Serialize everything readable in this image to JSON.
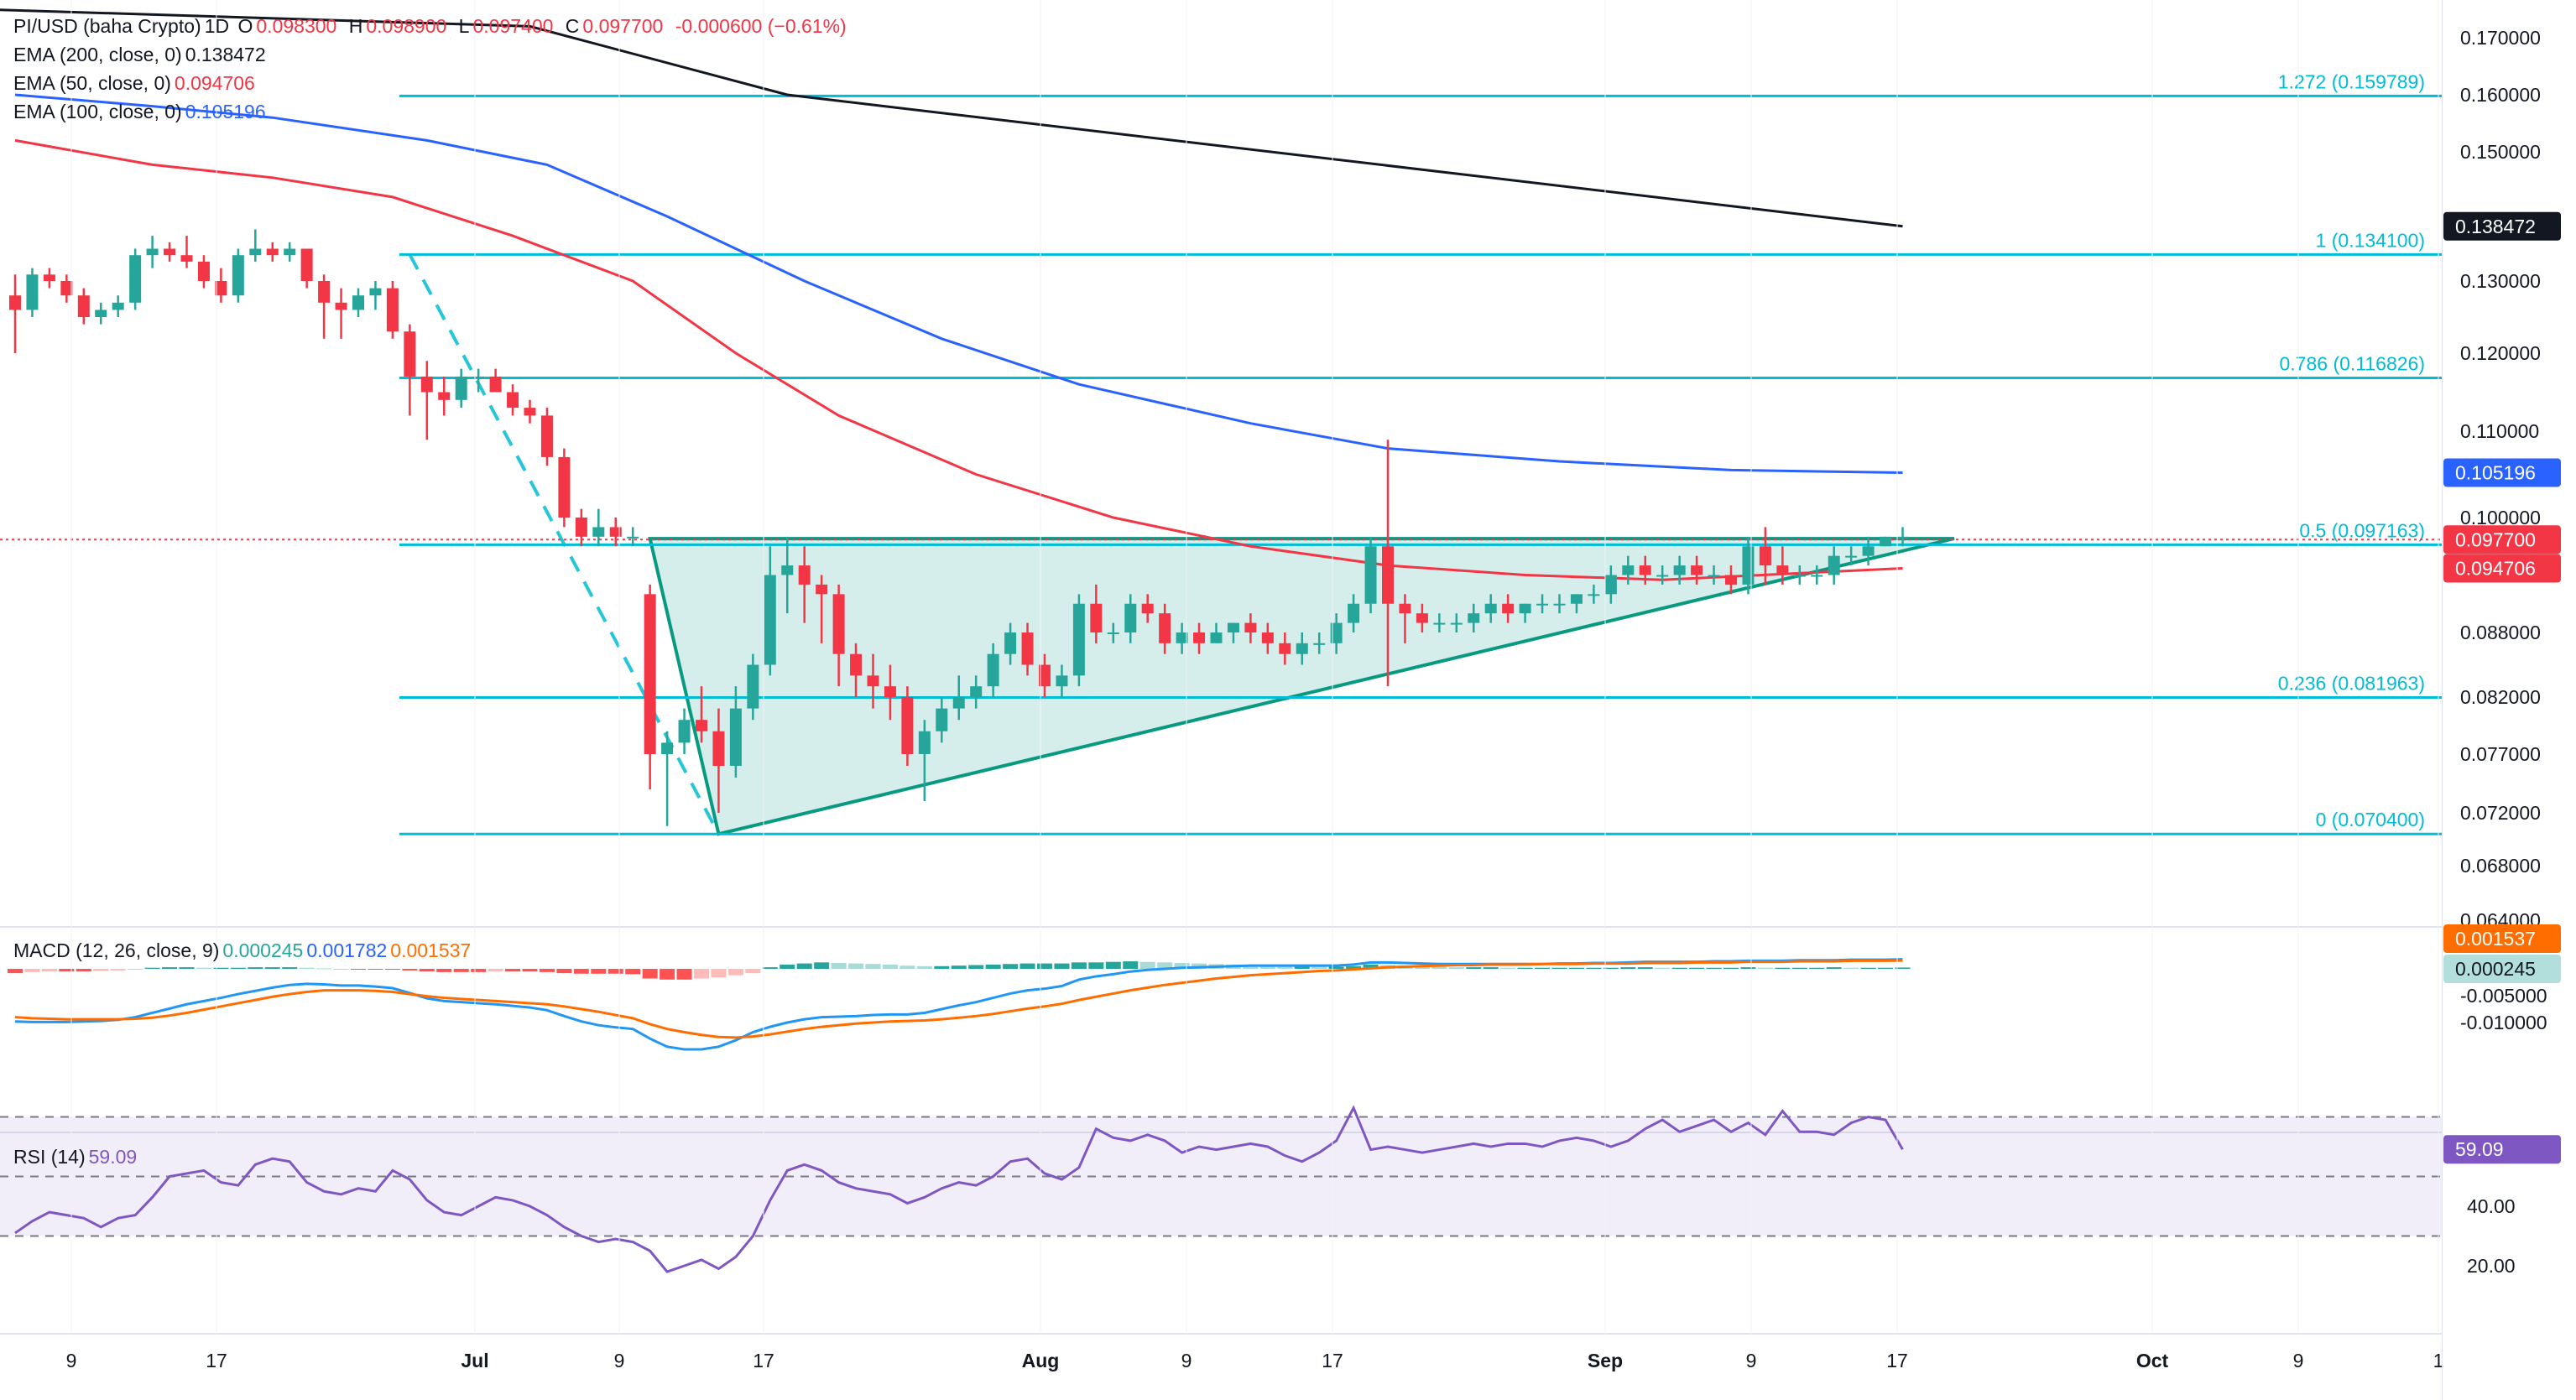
{
  "header": {
    "symbol": "PI/USD (baha Crypto)",
    "interval": "1D",
    "open_label": "O",
    "open": "0.098300",
    "high_label": "H",
    "high": "0.098900",
    "low_label": "L",
    "low": "0.097400",
    "close_label": "C",
    "close": "0.097700",
    "change": "-0.000600 (−0.61%)"
  },
  "indicators": {
    "ema200": {
      "label": "EMA (200, close, 0)",
      "value": "0.138472",
      "color": "#131722"
    },
    "ema50": {
      "label": "EMA (50, close, 0)",
      "value": "0.094706",
      "color": "#f23645"
    },
    "ema100": {
      "label": "EMA (100, close, 0)",
      "value": "0.105196",
      "color": "#2962ff"
    },
    "macd": {
      "label": "MACD (12, 26, close, 9)",
      "hist": "0.000245",
      "macd": "0.001782",
      "signal": "0.001537"
    },
    "rsi": {
      "label": "RSI (14)",
      "value": "59.09"
    }
  },
  "colors": {
    "up": "#26a69a",
    "down": "#f23645",
    "fib": "#00bcd4",
    "ema200": "#131722",
    "ema50": "#f23645",
    "ema100": "#2962ff",
    "macd_line": "#2196f3",
    "signal_line": "#ff6d00",
    "rsi_line": "#7e57c2",
    "triangle_fill": "#b2dfdb",
    "triangle_stroke": "#089981"
  },
  "chart_data": {
    "type": "candlestick",
    "x_labels": [
      "9",
      "17",
      "Jul",
      "9",
      "17",
      "Aug",
      "9",
      "17",
      "Sep",
      "9",
      "17",
      "Oct",
      "9",
      "1"
    ],
    "price_ticks": [
      "0.170000",
      "0.160000",
      "0.150000",
      "0.130000",
      "0.120000",
      "0.110000",
      "0.100000",
      "0.088000",
      "0.082000",
      "0.077000",
      "0.072000",
      "0.068000",
      "0.064000"
    ],
    "price_tags": [
      {
        "value": "0.138472",
        "kind": "ema200"
      },
      {
        "value": "0.105196",
        "kind": "ema100"
      },
      {
        "value": "0.097700",
        "kind": "last"
      },
      {
        "value": "0.094706",
        "kind": "ema50"
      }
    ],
    "fib_levels": [
      {
        "label": "1.272 (0.159789)",
        "price": 0.159789
      },
      {
        "label": "1 (0.134100)",
        "price": 0.1341
      },
      {
        "label": "0.786 (0.116826)",
        "price": 0.116826
      },
      {
        "label": "0.5 (0.097163)",
        "price": 0.097163
      },
      {
        "label": "0.236 (0.081963)",
        "price": 0.081963
      },
      {
        "label": "0 (0.070400)",
        "price": 0.0704
      }
    ],
    "ohlc": [
      [
        0.128,
        0.131,
        0.12,
        0.126
      ],
      [
        0.126,
        0.132,
        0.125,
        0.131
      ],
      [
        0.131,
        0.132,
        0.129,
        0.13
      ],
      [
        0.13,
        0.131,
        0.127,
        0.128
      ],
      [
        0.128,
        0.129,
        0.124,
        0.125
      ],
      [
        0.125,
        0.127,
        0.124,
        0.126
      ],
      [
        0.126,
        0.128,
        0.125,
        0.127
      ],
      [
        0.127,
        0.135,
        0.126,
        0.134
      ],
      [
        0.134,
        0.137,
        0.132,
        0.135
      ],
      [
        0.135,
        0.136,
        0.133,
        0.134
      ],
      [
        0.134,
        0.137,
        0.132,
        0.133
      ],
      [
        0.133,
        0.134,
        0.129,
        0.13
      ],
      [
        0.13,
        0.132,
        0.127,
        0.128
      ],
      [
        0.128,
        0.135,
        0.127,
        0.134
      ],
      [
        0.134,
        0.138,
        0.133,
        0.135
      ],
      [
        0.135,
        0.136,
        0.133,
        0.134
      ],
      [
        0.134,
        0.136,
        0.133,
        0.135
      ],
      [
        0.135,
        0.135,
        0.129,
        0.13
      ],
      [
        0.13,
        0.131,
        0.122,
        0.127
      ],
      [
        0.127,
        0.129,
        0.122,
        0.126
      ],
      [
        0.126,
        0.129,
        0.125,
        0.128
      ],
      [
        0.128,
        0.13,
        0.126,
        0.129
      ],
      [
        0.129,
        0.13,
        0.122,
        0.123
      ],
      [
        0.123,
        0.124,
        0.112,
        0.117
      ],
      [
        0.117,
        0.119,
        0.109,
        0.115
      ],
      [
        0.115,
        0.117,
        0.112,
        0.114
      ],
      [
        0.114,
        0.118,
        0.113,
        0.117
      ],
      [
        0.117,
        0.118,
        0.115,
        0.117
      ],
      [
        0.117,
        0.118,
        0.115,
        0.115
      ],
      [
        0.115,
        0.116,
        0.112,
        0.113
      ],
      [
        0.113,
        0.114,
        0.111,
        0.112
      ],
      [
        0.112,
        0.113,
        0.106,
        0.107
      ],
      [
        0.107,
        0.108,
        0.099,
        0.1
      ],
      [
        0.1,
        0.101,
        0.097,
        0.098
      ],
      [
        0.098,
        0.101,
        0.097,
        0.099
      ],
      [
        0.099,
        0.1,
        0.097,
        0.098
      ],
      [
        0.098,
        0.099,
        0.097,
        0.098
      ],
      [
        0.092,
        0.093,
        0.074,
        0.077
      ],
      [
        0.077,
        0.079,
        0.071,
        0.078
      ],
      [
        0.078,
        0.081,
        0.077,
        0.08
      ],
      [
        0.08,
        0.083,
        0.078,
        0.079
      ],
      [
        0.079,
        0.081,
        0.072,
        0.076
      ],
      [
        0.076,
        0.083,
        0.075,
        0.081
      ],
      [
        0.081,
        0.086,
        0.08,
        0.085
      ],
      [
        0.085,
        0.097,
        0.084,
        0.094
      ],
      [
        0.094,
        0.098,
        0.09,
        0.095
      ],
      [
        0.095,
        0.097,
        0.089,
        0.093
      ],
      [
        0.093,
        0.094,
        0.087,
        0.092
      ],
      [
        0.092,
        0.093,
        0.083,
        0.086
      ],
      [
        0.086,
        0.087,
        0.082,
        0.084
      ],
      [
        0.084,
        0.086,
        0.081,
        0.083
      ],
      [
        0.083,
        0.085,
        0.08,
        0.082
      ],
      [
        0.082,
        0.083,
        0.076,
        0.077
      ],
      [
        0.077,
        0.08,
        0.073,
        0.079
      ],
      [
        0.079,
        0.082,
        0.078,
        0.081
      ],
      [
        0.081,
        0.084,
        0.08,
        0.082
      ],
      [
        0.082,
        0.084,
        0.081,
        0.083
      ],
      [
        0.083,
        0.087,
        0.082,
        0.086
      ],
      [
        0.086,
        0.089,
        0.085,
        0.088
      ],
      [
        0.088,
        0.089,
        0.084,
        0.085
      ],
      [
        0.085,
        0.086,
        0.082,
        0.083
      ],
      [
        0.083,
        0.085,
        0.082,
        0.084
      ],
      [
        0.084,
        0.092,
        0.083,
        0.091
      ],
      [
        0.091,
        0.093,
        0.087,
        0.088
      ],
      [
        0.088,
        0.089,
        0.087,
        0.088
      ],
      [
        0.088,
        0.092,
        0.087,
        0.091
      ],
      [
        0.091,
        0.092,
        0.089,
        0.09
      ],
      [
        0.09,
        0.091,
        0.086,
        0.087
      ],
      [
        0.087,
        0.089,
        0.086,
        0.088
      ],
      [
        0.088,
        0.089,
        0.086,
        0.087
      ],
      [
        0.087,
        0.089,
        0.087,
        0.088
      ],
      [
        0.088,
        0.089,
        0.087,
        0.089
      ],
      [
        0.089,
        0.09,
        0.087,
        0.088
      ],
      [
        0.088,
        0.089,
        0.086,
        0.087
      ],
      [
        0.087,
        0.088,
        0.085,
        0.086
      ],
      [
        0.086,
        0.088,
        0.085,
        0.087
      ],
      [
        0.087,
        0.088,
        0.086,
        0.087
      ],
      [
        0.087,
        0.09,
        0.086,
        0.089
      ],
      [
        0.089,
        0.092,
        0.088,
        0.091
      ],
      [
        0.091,
        0.098,
        0.09,
        0.097
      ],
      [
        0.097,
        0.109,
        0.083,
        0.091
      ],
      [
        0.091,
        0.092,
        0.087,
        0.09
      ],
      [
        0.09,
        0.091,
        0.088,
        0.089
      ],
      [
        0.089,
        0.09,
        0.088,
        0.089
      ],
      [
        0.089,
        0.09,
        0.088,
        0.089
      ],
      [
        0.089,
        0.091,
        0.088,
        0.09
      ],
      [
        0.09,
        0.092,
        0.089,
        0.091
      ],
      [
        0.091,
        0.092,
        0.089,
        0.09
      ],
      [
        0.09,
        0.091,
        0.089,
        0.091
      ],
      [
        0.091,
        0.092,
        0.09,
        0.091
      ],
      [
        0.091,
        0.092,
        0.09,
        0.091
      ],
      [
        0.091,
        0.092,
        0.09,
        0.092
      ],
      [
        0.092,
        0.093,
        0.091,
        0.092
      ],
      [
        0.092,
        0.095,
        0.091,
        0.094
      ],
      [
        0.094,
        0.096,
        0.093,
        0.095
      ],
      [
        0.095,
        0.096,
        0.093,
        0.094
      ],
      [
        0.094,
        0.095,
        0.093,
        0.094
      ],
      [
        0.094,
        0.096,
        0.093,
        0.095
      ],
      [
        0.095,
        0.096,
        0.093,
        0.094
      ],
      [
        0.094,
        0.095,
        0.093,
        0.094
      ],
      [
        0.094,
        0.095,
        0.092,
        0.093
      ],
      [
        0.093,
        0.098,
        0.092,
        0.097
      ],
      [
        0.097,
        0.099,
        0.093,
        0.095
      ],
      [
        0.095,
        0.097,
        0.093,
        0.094
      ],
      [
        0.094,
        0.095,
        0.093,
        0.094
      ],
      [
        0.094,
        0.095,
        0.093,
        0.094
      ],
      [
        0.094,
        0.097,
        0.093,
        0.096
      ],
      [
        0.096,
        0.097,
        0.095,
        0.096
      ],
      [
        0.096,
        0.098,
        0.095,
        0.097
      ],
      [
        0.097,
        0.098,
        0.097,
        0.098
      ],
      [
        0.098,
        0.099,
        0.097,
        0.098
      ]
    ],
    "ema200_line": [
      [
        0.175,
        -2
      ],
      [
        0.172,
        30
      ],
      [
        0.16,
        45
      ],
      [
        0.138472,
        110
      ]
    ],
    "ema100_line": [
      [
        0.16,
        0
      ],
      [
        0.158,
        8
      ],
      [
        0.156,
        15
      ],
      [
        0.152,
        24
      ],
      [
        0.148,
        31
      ],
      [
        0.14,
        38
      ],
      [
        0.13,
        46
      ],
      [
        0.122,
        54
      ],
      [
        0.116,
        62
      ],
      [
        0.111,
        72
      ],
      [
        0.108,
        80
      ],
      [
        0.1065,
        90
      ],
      [
        0.1055,
        100
      ],
      [
        0.105196,
        110
      ]
    ],
    "ema50_line": [
      [
        0.152,
        0
      ],
      [
        0.148,
        8
      ],
      [
        0.146,
        15
      ],
      [
        0.143,
        22
      ],
      [
        0.137,
        29
      ],
      [
        0.13,
        36
      ],
      [
        0.12,
        42
      ],
      [
        0.112,
        48
      ],
      [
        0.105,
        56
      ],
      [
        0.1,
        64
      ],
      [
        0.097,
        72
      ],
      [
        0.095,
        80
      ],
      [
        0.094,
        88
      ],
      [
        0.0935,
        96
      ],
      [
        0.094706,
        110
      ]
    ],
    "triangle": [
      [
        0.0978,
        37
      ],
      [
        0.0704,
        41
      ],
      [
        0.0978,
        113
      ]
    ],
    "dashed_leg": [
      [
        0.1341,
        23
      ],
      [
        0.0704,
        41
      ]
    ],
    "macd_hist": [
      -0.0008,
      -0.0006,
      -0.0005,
      -0.0005,
      -0.0005,
      -0.0004,
      -0.0003,
      -0.0001,
      0.0002,
      0.0003,
      0.0003,
      0.0002,
      0.0002,
      0.0002,
      0.0003,
      0.0003,
      0.0003,
      0.0002,
      0.0001,
      0.0,
      -0.0001,
      -0.0001,
      -0.0001,
      -0.0003,
      -0.0005,
      -0.0006,
      -0.0006,
      -0.0006,
      -0.0005,
      -0.0005,
      -0.0005,
      -0.0006,
      -0.0008,
      -0.0009,
      -0.0009,
      -0.0009,
      -0.001,
      -0.0018,
      -0.002,
      -0.002,
      -0.0018,
      -0.0016,
      -0.0012,
      -0.0008,
      0.0003,
      0.0008,
      0.001,
      0.0012,
      0.0011,
      0.001,
      0.0009,
      0.0008,
      0.0006,
      0.0005,
      0.0005,
      0.0006,
      0.0007,
      0.0008,
      0.0009,
      0.001,
      0.001,
      0.001,
      0.0012,
      0.0012,
      0.0013,
      0.0014,
      0.0013,
      0.0012,
      0.0011,
      0.001,
      0.0009,
      0.0008,
      0.0007,
      0.0006,
      0.0005,
      0.0005,
      0.0004,
      0.0004,
      0.0005,
      0.0008,
      0.0007,
      0.0006,
      0.0005,
      0.0004,
      0.0003,
      0.0003,
      0.0003,
      0.0002,
      0.0002,
      0.0002,
      0.0002,
      0.0002,
      0.0002,
      0.0002,
      0.0003,
      0.0003,
      0.0002,
      0.0002,
      0.0002,
      0.0002,
      0.0002,
      0.0003,
      0.0002,
      0.0002,
      0.0002,
      0.0002,
      0.0003,
      0.0002,
      0.0002,
      0.0002,
      0.000245
    ],
    "macd_line": [
      -0.0098,
      -0.0099,
      -0.0099,
      -0.0099,
      -0.0098,
      -0.0097,
      -0.0095,
      -0.009,
      -0.0082,
      -0.0074,
      -0.0066,
      -0.006,
      -0.0054,
      -0.0047,
      -0.0041,
      -0.0035,
      -0.003,
      -0.0028,
      -0.0029,
      -0.0031,
      -0.0031,
      -0.0033,
      -0.0036,
      -0.0045,
      -0.0055,
      -0.006,
      -0.0062,
      -0.0064,
      -0.0066,
      -0.0069,
      -0.0072,
      -0.0077,
      -0.0088,
      -0.0098,
      -0.0105,
      -0.0109,
      -0.0112,
      -0.013,
      -0.0145,
      -0.015,
      -0.015,
      -0.0145,
      -0.0133,
      -0.0118,
      -0.0108,
      -0.01,
      -0.0094,
      -0.009,
      -0.0089,
      -0.0088,
      -0.0086,
      -0.0085,
      -0.0085,
      -0.0082,
      -0.0075,
      -0.0068,
      -0.0062,
      -0.0054,
      -0.0046,
      -0.004,
      -0.0037,
      -0.0032,
      -0.002,
      -0.0014,
      -0.001,
      -0.0005,
      -0.0002,
      0.0,
      0.0002,
      0.0003,
      0.0004,
      0.0005,
      0.0006,
      0.0006,
      0.0006,
      0.0006,
      0.0006,
      0.0006,
      0.0008,
      0.0012,
      0.0012,
      0.0011,
      0.001,
      0.0009,
      0.0009,
      0.0009,
      0.0009,
      0.0009,
      0.0009,
      0.0009,
      0.001,
      0.001,
      0.0011,
      0.0011,
      0.0012,
      0.0013,
      0.0013,
      0.0013,
      0.0013,
      0.0014,
      0.0014,
      0.0015,
      0.0015,
      0.0015,
      0.0016,
      0.0016,
      0.0016,
      0.0017,
      0.0017,
      0.0017,
      0.001782
    ],
    "signal_line": [
      -0.009,
      -0.0092,
      -0.0093,
      -0.0094,
      -0.0094,
      -0.0094,
      -0.0094,
      -0.0093,
      -0.0091,
      -0.0087,
      -0.0082,
      -0.0076,
      -0.007,
      -0.0064,
      -0.0058,
      -0.0052,
      -0.0047,
      -0.0043,
      -0.004,
      -0.004,
      -0.004,
      -0.0041,
      -0.0043,
      -0.0047,
      -0.0051,
      -0.0054,
      -0.0056,
      -0.0058,
      -0.006,
      -0.0062,
      -0.0064,
      -0.0066,
      -0.007,
      -0.0075,
      -0.008,
      -0.0086,
      -0.0092,
      -0.0103,
      -0.0112,
      -0.0118,
      -0.0123,
      -0.0127,
      -0.0128,
      -0.0126,
      -0.0122,
      -0.0117,
      -0.0112,
      -0.0108,
      -0.0105,
      -0.0102,
      -0.01,
      -0.0098,
      -0.0097,
      -0.0096,
      -0.0094,
      -0.0091,
      -0.0088,
      -0.0084,
      -0.0079,
      -0.0074,
      -0.007,
      -0.0065,
      -0.0058,
      -0.0052,
      -0.0046,
      -0.004,
      -0.0035,
      -0.003,
      -0.0026,
      -0.0022,
      -0.0018,
      -0.0015,
      -0.0012,
      -0.001,
      -0.0008,
      -0.0006,
      -0.0004,
      -0.0003,
      -0.0001,
      0.0001,
      0.0003,
      0.0004,
      0.0005,
      0.0006,
      0.0007,
      0.0007,
      0.0008,
      0.0008,
      0.0008,
      0.0009,
      0.0009,
      0.0009,
      0.001,
      0.001,
      0.001,
      0.0011,
      0.0011,
      0.0011,
      0.0012,
      0.0012,
      0.0012,
      0.0013,
      0.0013,
      0.0013,
      0.0014,
      0.0014,
      0.0014,
      0.0015,
      0.0015,
      0.0015,
      0.001537
    ],
    "macd_ticks": [
      "-0.005000",
      "-0.010000"
    ],
    "rsi": [
      31,
      35,
      38,
      37,
      36,
      33,
      36,
      37,
      43,
      50,
      51,
      52,
      48,
      47,
      54,
      56,
      55,
      48,
      45,
      44,
      46,
      45,
      52,
      49,
      42,
      38,
      37,
      40,
      43,
      42,
      40,
      37,
      33,
      30,
      28,
      29,
      28,
      25,
      18,
      20,
      22,
      19,
      23,
      30,
      42,
      52,
      54,
      52,
      48,
      46,
      45,
      44,
      41,
      43,
      46,
      48,
      47,
      50,
      55,
      56,
      51,
      49,
      53,
      66,
      63,
      62,
      64,
      62,
      58,
      60,
      59,
      60,
      61,
      60,
      57,
      55,
      58,
      62,
      73,
      59,
      60,
      59,
      58,
      59,
      60,
      61,
      60,
      61,
      61,
      60,
      62,
      63,
      62,
      60,
      62,
      66,
      69,
      65,
      67,
      69,
      65,
      68,
      64,
      72,
      65,
      65,
      64,
      68,
      70,
      69,
      59.09
    ],
    "rsi_ticks": [
      "59.09",
      "40.00",
      "20.00"
    ],
    "rsi_bands": [
      70,
      50,
      30
    ]
  }
}
